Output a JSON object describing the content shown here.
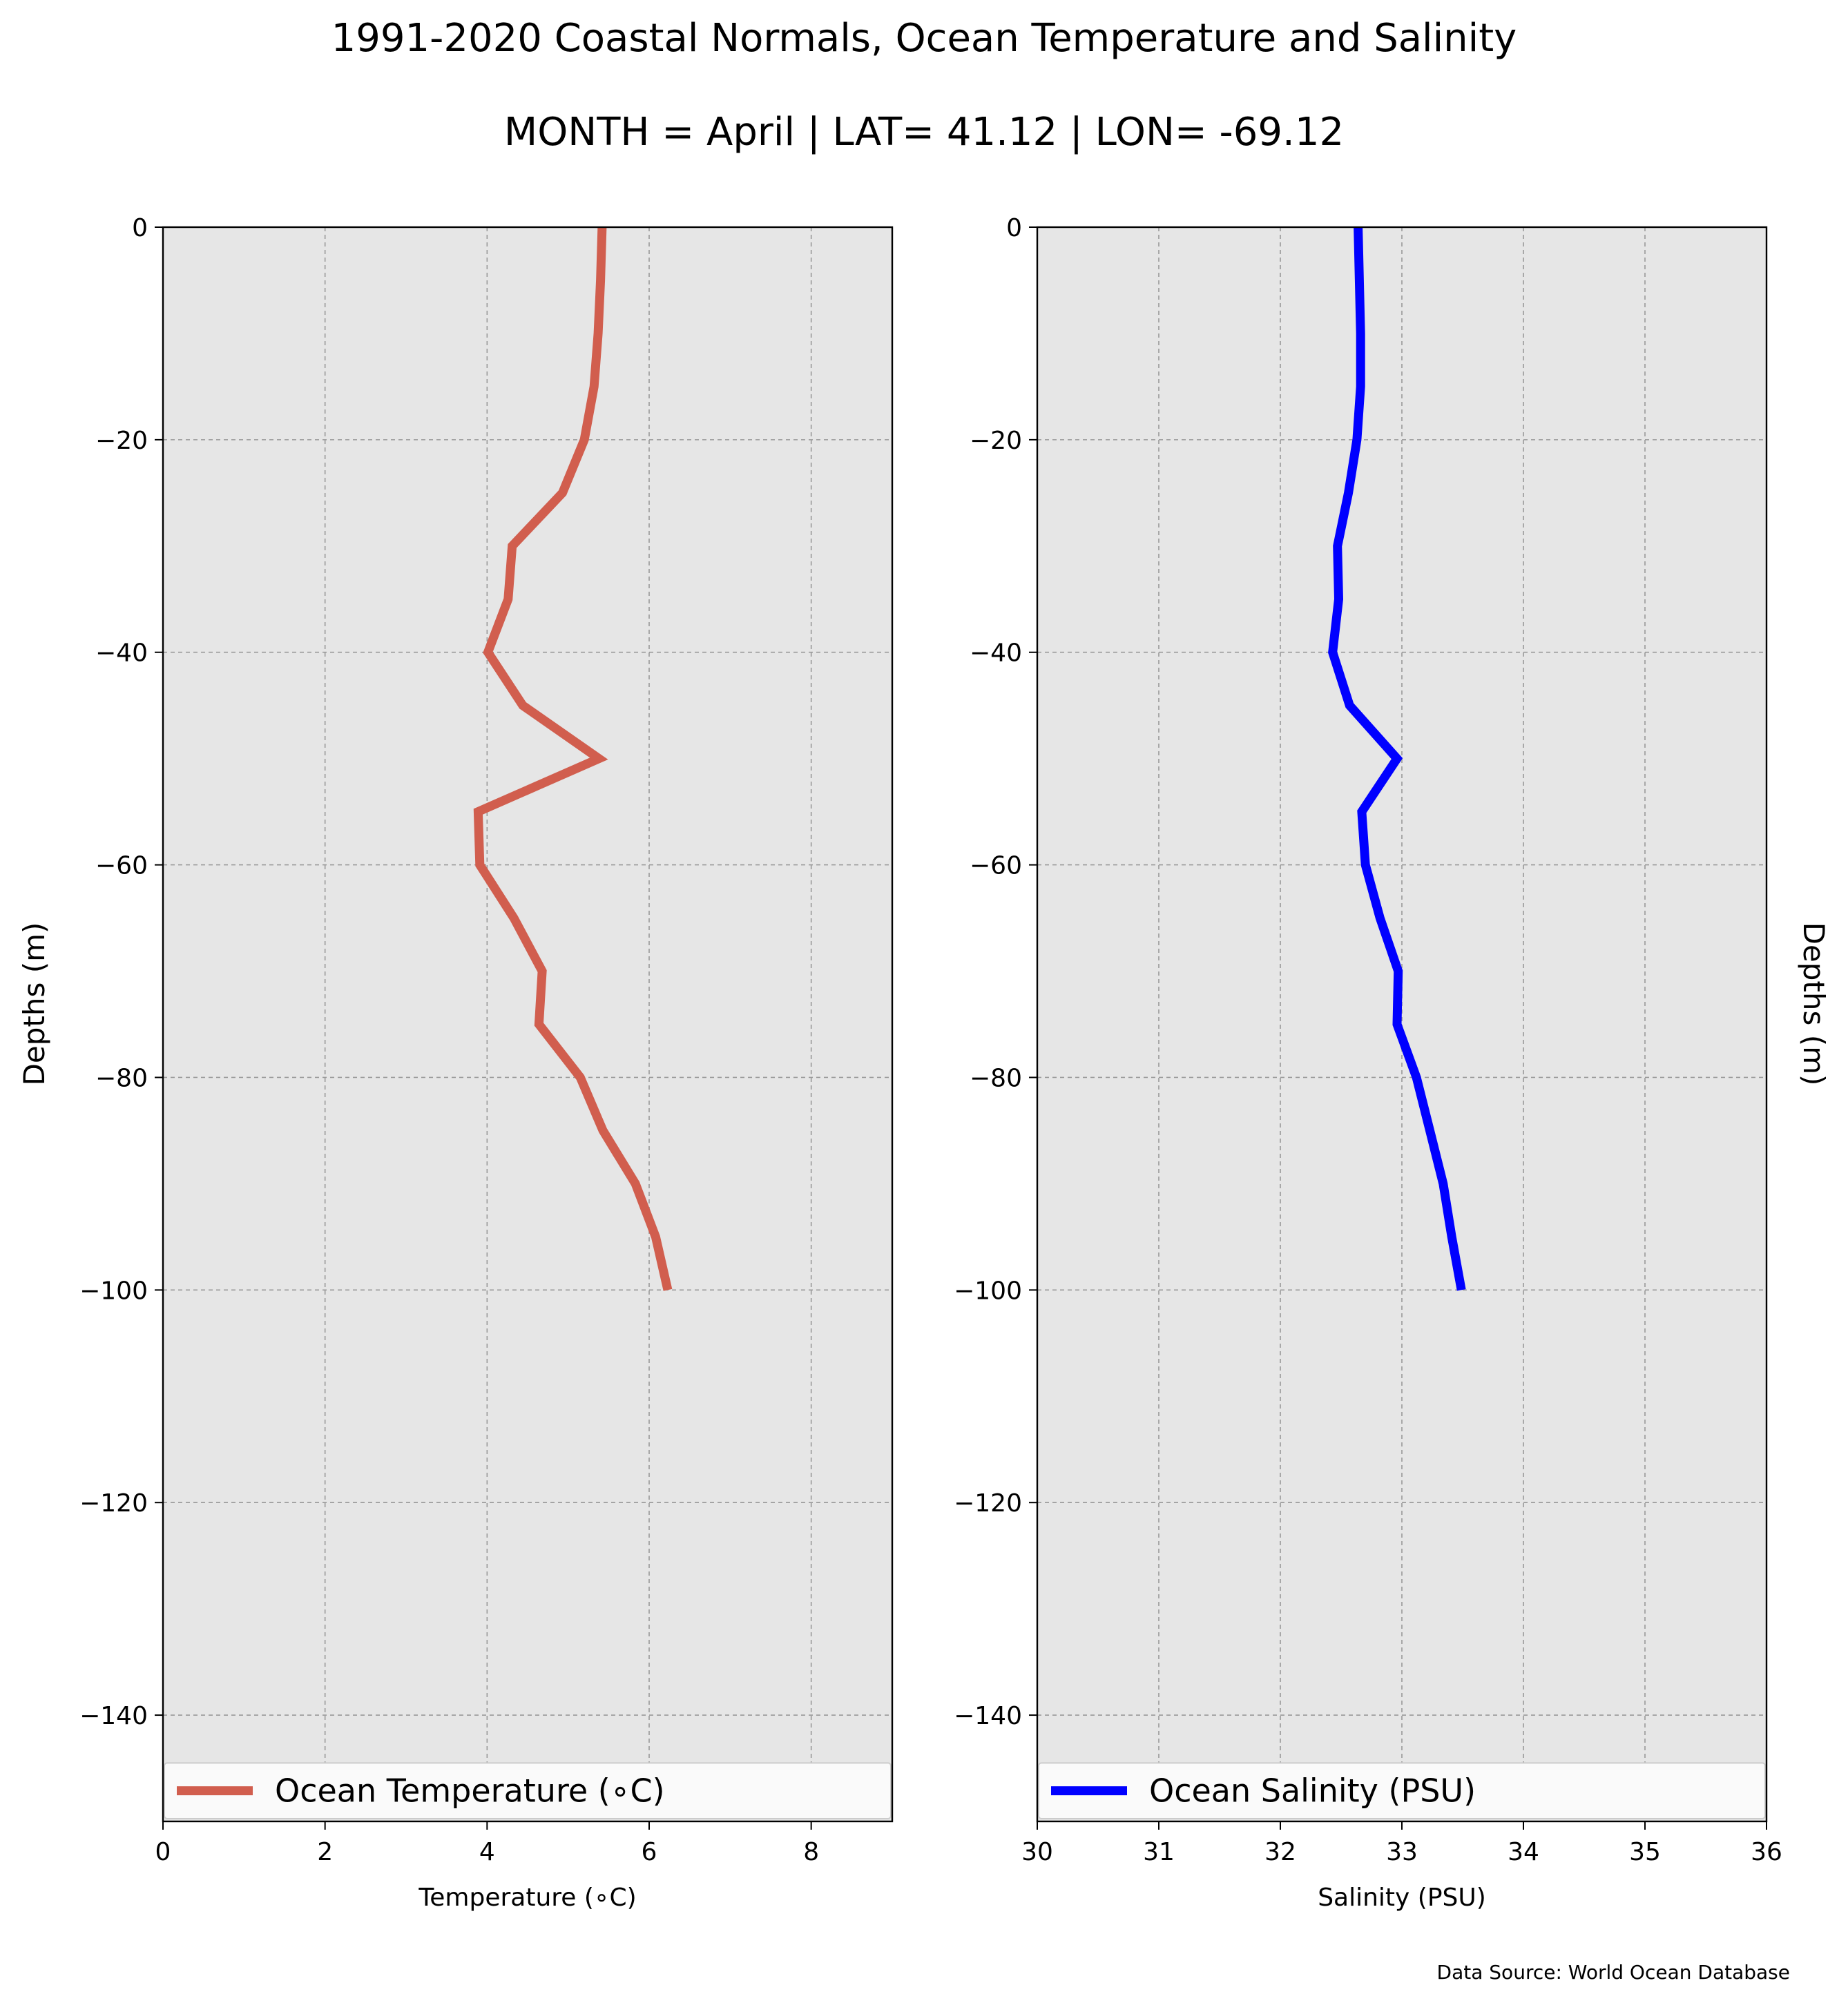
{
  "title": "1991-2020 Coastal Normals, Ocean Temperature and Salinity",
  "subtitle": "MONTH = April | LAT= 41.12 | LON= -69.12",
  "source_note": "Data Source: World Ocean Database",
  "colors": {
    "temperature": "#d15e4e",
    "salinity": "#0000ff",
    "axes_bg": "#e6e6e6",
    "grid": "#999999"
  },
  "chart_data": [
    {
      "type": "line",
      "xlabel": "Temperature ($^\\circ$C)",
      "xlabel_display": "Temperature (∘C)",
      "ylabel": "Depths (m)",
      "xlim": [
        0,
        9
      ],
      "ylim": [
        -150,
        0
      ],
      "xticks": [
        0,
        2,
        4,
        6,
        8
      ],
      "xtick_labels": [
        "0",
        "2",
        "4",
        "6",
        "8"
      ],
      "yticks": [
        0,
        -20,
        -40,
        -60,
        -80,
        -100,
        -120,
        -140
      ],
      "ytick_labels": [
        "0",
        "−20",
        "−40",
        "−60",
        "−80",
        "−100",
        "−120",
        "−140"
      ],
      "grid": true,
      "legend_position": "bottom",
      "series": [
        {
          "name": "Ocean Temperature (∘C)",
          "color": "#d15e4e",
          "x": [
            5.42,
            5.4,
            5.37,
            5.32,
            5.2,
            4.93,
            4.31,
            4.26,
            4.01,
            4.44,
            5.38,
            3.89,
            3.91,
            4.33,
            4.68,
            4.64,
            5.15,
            5.43,
            5.83,
            6.08,
            6.23
          ],
          "y": [
            0,
            -5,
            -10,
            -15,
            -20,
            -25,
            -30,
            -35,
            -40,
            -45,
            -50,
            -55,
            -60,
            -65,
            -70,
            -75,
            -80,
            -85,
            -90,
            -95,
            -100
          ]
        }
      ]
    },
    {
      "type": "line",
      "xlabel": "Salinity (PSU)",
      "ylabel": "Depths (m)",
      "xlim": [
        30,
        36
      ],
      "ylim": [
        -150,
        0
      ],
      "xticks": [
        30,
        31,
        32,
        33,
        34,
        35,
        36
      ],
      "xtick_labels": [
        "30",
        "31",
        "32",
        "33",
        "34",
        "35",
        "36"
      ],
      "yticks": [
        0,
        -20,
        -40,
        -60,
        -80,
        -100,
        -120,
        -140
      ],
      "ytick_labels": [
        "0",
        "−20",
        "−40",
        "−60",
        "−80",
        "−100",
        "−120",
        "−140"
      ],
      "grid": true,
      "legend_position": "bottom",
      "series": [
        {
          "name": "Ocean Salinity (PSU)",
          "color": "#0000ff",
          "x": [
            32.64,
            32.65,
            32.66,
            32.66,
            32.63,
            32.56,
            32.47,
            32.48,
            32.43,
            32.57,
            32.96,
            32.67,
            32.7,
            32.82,
            32.97,
            32.96,
            33.12,
            33.23,
            33.34,
            33.41,
            33.49
          ],
          "y": [
            0,
            -5,
            -10,
            -15,
            -20,
            -25,
            -30,
            -35,
            -40,
            -45,
            -50,
            -55,
            -60,
            -65,
            -70,
            -75,
            -80,
            -85,
            -90,
            -95,
            -100
          ]
        }
      ]
    }
  ]
}
